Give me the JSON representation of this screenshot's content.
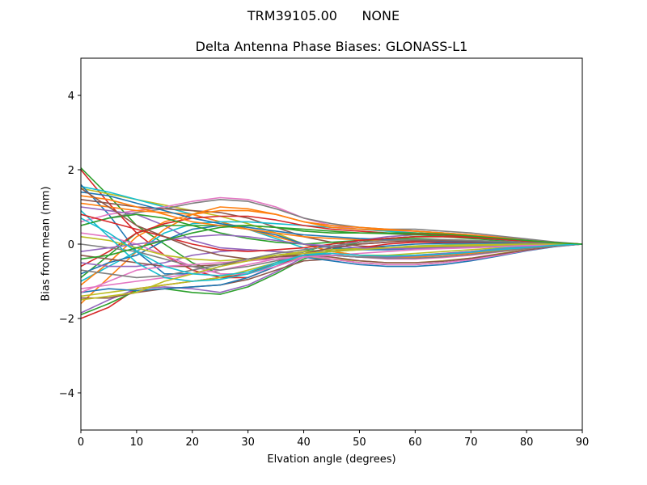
{
  "figure": {
    "suptitle": "TRM39105.00      NONE",
    "title": "Delta Antenna Phase Biases: GLONASS-L1",
    "xlabel": "Elvation angle (degrees)",
    "ylabel": "Bias from mean (mm)"
  },
  "chart_data": {
    "type": "line",
    "title": "Delta Antenna Phase Biases: GLONASS-L1",
    "suptitle": "TRM39105.00      NONE",
    "xlabel": "Elvation angle (degrees)",
    "ylabel": "Bias from mean (mm)",
    "xlim": [
      0,
      90
    ],
    "ylim": [
      -5,
      5
    ],
    "xticks": [
      0,
      10,
      20,
      30,
      40,
      50,
      60,
      70,
      80,
      90
    ],
    "yticks": [
      -4,
      -2,
      0,
      2,
      4
    ],
    "grid": false,
    "legend": null,
    "x": [
      0,
      5,
      10,
      15,
      20,
      25,
      30,
      35,
      40,
      45,
      50,
      55,
      60,
      65,
      70,
      75,
      80,
      85,
      90
    ],
    "series": [
      {
        "name": "s1",
        "color": "#d62728",
        "values": [
          2.0,
          1.1,
          0.3,
          -0.3,
          -0.7,
          -0.9,
          -0.9,
          -0.6,
          -0.3,
          -0.1,
          0.0,
          0.05,
          0.08,
          0.08,
          0.06,
          0.04,
          0.02,
          0.01,
          0.0
        ]
      },
      {
        "name": "s2",
        "color": "#2ca02c",
        "values": [
          2.05,
          1.3,
          0.5,
          0.0,
          -0.5,
          -0.8,
          -0.8,
          -0.5,
          -0.2,
          0.0,
          0.1,
          0.15,
          0.15,
          0.12,
          0.1,
          0.07,
          0.04,
          0.02,
          0.0
        ]
      },
      {
        "name": "s3",
        "color": "#bcbd22",
        "values": [
          1.5,
          1.35,
          1.2,
          1.05,
          0.9,
          0.75,
          0.55,
          0.3,
          0.0,
          -0.2,
          -0.3,
          -0.3,
          -0.25,
          -0.2,
          -0.15,
          -0.1,
          -0.05,
          -0.02,
          0.0
        ]
      },
      {
        "name": "s4",
        "color": "#17becf",
        "values": [
          1.55,
          1.4,
          1.2,
          1.0,
          0.8,
          0.6,
          0.4,
          0.15,
          -0.1,
          -0.3,
          -0.35,
          -0.35,
          -0.3,
          -0.25,
          -0.2,
          -0.12,
          -0.06,
          -0.02,
          0.0
        ]
      },
      {
        "name": "s5",
        "color": "#1f77b4",
        "values": [
          1.6,
          0.8,
          -0.2,
          -0.8,
          -0.8,
          -0.6,
          -0.4,
          -0.3,
          -0.2,
          -0.15,
          -0.1,
          -0.05,
          0.0,
          0.02,
          0.02,
          0.02,
          0.01,
          0.0,
          0.0
        ]
      },
      {
        "name": "s6",
        "color": "#e377c2",
        "values": [
          0.6,
          0.8,
          0.9,
          1.0,
          1.15,
          1.25,
          1.2,
          1.0,
          0.7,
          0.5,
          0.4,
          0.35,
          0.35,
          0.3,
          0.25,
          0.2,
          0.12,
          0.05,
          0.0
        ]
      },
      {
        "name": "s7",
        "color": "#7f7f7f",
        "values": [
          0.5,
          0.7,
          0.85,
          0.95,
          1.1,
          1.2,
          1.15,
          0.95,
          0.7,
          0.55,
          0.45,
          0.4,
          0.4,
          0.35,
          0.3,
          0.22,
          0.14,
          0.06,
          0.0
        ]
      },
      {
        "name": "s8",
        "color": "#8c564b",
        "values": [
          1.2,
          1.1,
          1.0,
          0.95,
          0.9,
          0.85,
          0.7,
          0.45,
          0.2,
          0.05,
          -0.05,
          -0.1,
          -0.1,
          -0.08,
          -0.06,
          -0.04,
          -0.02,
          -0.01,
          0.0
        ]
      },
      {
        "name": "s9",
        "color": "#9467bd",
        "values": [
          1.0,
          0.9,
          0.8,
          0.5,
          0.1,
          -0.1,
          -0.15,
          -0.2,
          -0.25,
          -0.3,
          -0.35,
          -0.35,
          -0.3,
          -0.25,
          -0.2,
          -0.14,
          -0.08,
          -0.03,
          0.0
        ]
      },
      {
        "name": "s10",
        "color": "#ff7f0e",
        "values": [
          1.1,
          1.0,
          0.9,
          0.85,
          0.8,
          0.6,
          0.4,
          0.2,
          0.0,
          -0.2,
          -0.3,
          -0.35,
          -0.35,
          -0.3,
          -0.25,
          -0.17,
          -0.1,
          -0.04,
          0.0
        ]
      },
      {
        "name": "s11",
        "color": "#d62728",
        "values": [
          -2.0,
          -1.7,
          -1.2,
          -1.1,
          -1.0,
          -0.9,
          -0.8,
          -0.5,
          -0.3,
          -0.2,
          -0.1,
          0.0,
          0.05,
          0.05,
          0.04,
          0.03,
          0.02,
          0.01,
          0.0
        ]
      },
      {
        "name": "s12",
        "color": "#2ca02c",
        "values": [
          -1.9,
          -1.6,
          -1.25,
          -1.2,
          -1.3,
          -1.35,
          -1.15,
          -0.8,
          -0.4,
          -0.15,
          0.05,
          0.15,
          0.2,
          0.2,
          0.15,
          0.1,
          0.06,
          0.02,
          0.0
        ]
      },
      {
        "name": "s13",
        "color": "#9467bd",
        "values": [
          -1.85,
          -1.5,
          -1.2,
          -1.15,
          -1.2,
          -1.3,
          -1.1,
          -0.75,
          -0.35,
          -0.1,
          0.1,
          0.2,
          0.25,
          0.22,
          0.18,
          0.12,
          0.07,
          0.03,
          0.0
        ]
      },
      {
        "name": "s14",
        "color": "#ff7f0e",
        "values": [
          -1.6,
          -0.9,
          -0.2,
          0.4,
          0.8,
          1.0,
          0.95,
          0.8,
          0.6,
          0.5,
          0.45,
          0.4,
          0.35,
          0.3,
          0.25,
          0.18,
          0.1,
          0.04,
          0.0
        ]
      },
      {
        "name": "s15",
        "color": "#8c564b",
        "values": [
          -1.45,
          -1.45,
          -1.3,
          -1.2,
          -1.15,
          -1.1,
          -0.95,
          -0.7,
          -0.45,
          -0.4,
          -0.5,
          -0.55,
          -0.55,
          -0.5,
          -0.4,
          -0.28,
          -0.16,
          -0.06,
          0.0
        ]
      },
      {
        "name": "s16",
        "color": "#bcbd22",
        "values": [
          -1.4,
          -1.3,
          -1.2,
          -1.1,
          -1.0,
          -0.9,
          -0.7,
          -0.5,
          -0.35,
          -0.4,
          -0.45,
          -0.5,
          -0.5,
          -0.45,
          -0.38,
          -0.26,
          -0.15,
          -0.06,
          0.0
        ]
      },
      {
        "name": "s17",
        "color": "#1f77b4",
        "values": [
          -1.3,
          -1.2,
          -1.25,
          -1.2,
          -1.15,
          -1.1,
          -0.9,
          -0.6,
          -0.35,
          -0.45,
          -0.55,
          -0.6,
          -0.6,
          -0.55,
          -0.45,
          -0.32,
          -0.18,
          -0.07,
          0.0
        ]
      },
      {
        "name": "s18",
        "color": "#e377c2",
        "values": [
          -1.2,
          -1.1,
          -1.0,
          -0.9,
          -0.8,
          -0.7,
          -0.55,
          -0.4,
          -0.3,
          -0.4,
          -0.5,
          -0.55,
          -0.55,
          -0.5,
          -0.42,
          -0.3,
          -0.17,
          -0.06,
          0.0
        ]
      },
      {
        "name": "s19",
        "color": "#17becf",
        "values": [
          -1.0,
          -0.6,
          -0.2,
          0.3,
          0.55,
          0.6,
          0.6,
          0.55,
          0.5,
          0.45,
          0.4,
          0.35,
          0.3,
          0.26,
          0.22,
          0.16,
          0.1,
          0.04,
          0.0
        ]
      },
      {
        "name": "s20",
        "color": "#ff7f0e",
        "values": [
          -1.1,
          -0.5,
          0.2,
          0.6,
          0.8,
          0.9,
          0.9,
          0.8,
          0.6,
          0.45,
          0.4,
          0.38,
          0.35,
          0.3,
          0.25,
          0.18,
          0.1,
          0.04,
          0.0
        ]
      },
      {
        "name": "s21",
        "color": "#2ca02c",
        "values": [
          -0.9,
          -0.3,
          0.3,
          0.5,
          0.5,
          0.5,
          0.5,
          0.45,
          0.4,
          0.35,
          0.3,
          0.28,
          0.25,
          0.22,
          0.18,
          0.13,
          0.08,
          0.03,
          0.0
        ]
      },
      {
        "name": "s22",
        "color": "#d62728",
        "values": [
          -0.6,
          -0.2,
          0.3,
          0.55,
          0.7,
          0.75,
          0.75,
          0.65,
          0.5,
          0.4,
          0.35,
          0.3,
          0.28,
          0.25,
          0.2,
          0.15,
          0.09,
          0.04,
          0.0
        ]
      },
      {
        "name": "s23",
        "color": "#1f77b4",
        "values": [
          -0.8,
          -0.5,
          -0.3,
          0.1,
          0.4,
          0.5,
          0.4,
          0.25,
          0.0,
          -0.1,
          -0.15,
          -0.15,
          -0.12,
          -0.1,
          -0.08,
          -0.05,
          -0.03,
          -0.01,
          0.0
        ]
      },
      {
        "name": "s24",
        "color": "#9467bd",
        "values": [
          -0.5,
          -0.6,
          -0.6,
          -0.5,
          -0.3,
          -0.2,
          -0.15,
          -0.2,
          -0.25,
          -0.3,
          -0.35,
          -0.35,
          -0.32,
          -0.28,
          -0.22,
          -0.15,
          -0.09,
          -0.03,
          0.0
        ]
      },
      {
        "name": "s25",
        "color": "#8c564b",
        "values": [
          -0.3,
          -0.4,
          -0.5,
          -0.6,
          -0.6,
          -0.55,
          -0.45,
          -0.35,
          -0.3,
          -0.35,
          -0.45,
          -0.5,
          -0.5,
          -0.46,
          -0.38,
          -0.27,
          -0.16,
          -0.06,
          0.0
        ]
      },
      {
        "name": "s26",
        "color": "#e377c2",
        "values": [
          0.3,
          0.2,
          0.0,
          -0.3,
          -0.6,
          -0.8,
          -0.8,
          -0.6,
          -0.35,
          -0.3,
          -0.35,
          -0.4,
          -0.4,
          -0.36,
          -0.3,
          -0.21,
          -0.12,
          -0.05,
          0.0
        ]
      },
      {
        "name": "s27",
        "color": "#7f7f7f",
        "values": [
          0.0,
          -0.1,
          -0.2,
          -0.4,
          -0.6,
          -0.7,
          -0.6,
          -0.45,
          -0.3,
          -0.3,
          -0.35,
          -0.38,
          -0.38,
          -0.34,
          -0.28,
          -0.2,
          -0.12,
          -0.05,
          0.0
        ]
      },
      {
        "name": "s28",
        "color": "#bcbd22",
        "values": [
          0.2,
          0.1,
          -0.1,
          -0.3,
          -0.4,
          -0.45,
          -0.4,
          -0.3,
          -0.2,
          -0.15,
          -0.12,
          -0.1,
          -0.08,
          -0.06,
          -0.05,
          -0.03,
          -0.02,
          -0.01,
          0.0
        ]
      },
      {
        "name": "s29",
        "color": "#17becf",
        "values": [
          0.9,
          0.2,
          -0.5,
          -0.9,
          -1.0,
          -0.95,
          -0.8,
          -0.55,
          -0.3,
          -0.2,
          -0.15,
          -0.1,
          -0.05,
          -0.02,
          0.0,
          0.0,
          0.0,
          0.0,
          0.0
        ]
      },
      {
        "name": "s30",
        "color": "#2ca02c",
        "values": [
          0.5,
          0.7,
          0.8,
          0.7,
          0.5,
          0.3,
          0.15,
          0.05,
          0.0,
          0.05,
          0.1,
          0.15,
          0.2,
          0.2,
          0.18,
          0.13,
          0.08,
          0.03,
          0.0
        ]
      },
      {
        "name": "s31",
        "color": "#ff7f0e",
        "values": [
          1.3,
          1.2,
          1.0,
          0.8,
          0.6,
          0.5,
          0.4,
          0.3,
          0.2,
          0.15,
          0.12,
          0.1,
          0.1,
          0.08,
          0.06,
          0.04,
          0.03,
          0.01,
          0.0
        ]
      },
      {
        "name": "s32",
        "color": "#1f77b4",
        "values": [
          1.4,
          1.3,
          1.1,
          0.9,
          0.7,
          0.55,
          0.45,
          0.35,
          0.25,
          0.2,
          0.15,
          0.12,
          0.1,
          0.08,
          0.06,
          0.04,
          0.03,
          0.01,
          0.0
        ]
      },
      {
        "name": "s33",
        "color": "#d62728",
        "values": [
          0.8,
          0.6,
          0.4,
          0.2,
          0.0,
          -0.15,
          -0.2,
          -0.15,
          -0.1,
          0.0,
          0.1,
          0.15,
          0.2,
          0.2,
          0.18,
          0.13,
          0.08,
          0.03,
          0.0
        ]
      },
      {
        "name": "s34",
        "color": "#9467bd",
        "values": [
          -0.2,
          -0.1,
          0.0,
          0.1,
          0.2,
          0.25,
          0.2,
          0.1,
          0.0,
          -0.05,
          -0.1,
          -0.12,
          -0.12,
          -0.1,
          -0.08,
          -0.06,
          -0.04,
          -0.02,
          0.0
        ]
      },
      {
        "name": "s35",
        "color": "#e377c2",
        "values": [
          -1.3,
          -1.0,
          -0.7,
          -0.6,
          -0.55,
          -0.5,
          -0.45,
          -0.4,
          -0.35,
          -0.3,
          -0.25,
          -0.2,
          -0.15,
          -0.12,
          -0.1,
          -0.07,
          -0.04,
          -0.02,
          0.0
        ]
      },
      {
        "name": "s36",
        "color": "#8c564b",
        "values": [
          1.5,
          1.0,
          0.5,
          0.2,
          -0.1,
          -0.3,
          -0.4,
          -0.35,
          -0.25,
          -0.1,
          0.0,
          0.05,
          0.1,
          0.1,
          0.08,
          0.06,
          0.04,
          0.02,
          0.0
        ]
      },
      {
        "name": "s37",
        "color": "#7f7f7f",
        "values": [
          -0.7,
          -0.8,
          -0.9,
          -0.85,
          -0.7,
          -0.55,
          -0.4,
          -0.25,
          -0.15,
          -0.05,
          0.05,
          0.1,
          0.12,
          0.12,
          0.1,
          0.07,
          0.04,
          0.02,
          0.0
        ]
      },
      {
        "name": "s38",
        "color": "#bcbd22",
        "values": [
          -1.5,
          -1.4,
          -1.3,
          -1.0,
          -0.8,
          -0.6,
          -0.45,
          -0.3,
          -0.25,
          -0.2,
          -0.15,
          -0.1,
          -0.05,
          -0.03,
          -0.02,
          -0.01,
          0.0,
          0.0,
          0.0
        ]
      },
      {
        "name": "s39",
        "color": "#17becf",
        "values": [
          0.7,
          0.3,
          -0.2,
          -0.6,
          -0.8,
          -0.85,
          -0.75,
          -0.5,
          -0.3,
          -0.25,
          -0.3,
          -0.32,
          -0.3,
          -0.27,
          -0.22,
          -0.15,
          -0.09,
          -0.03,
          0.0
        ]
      },
      {
        "name": "s40",
        "color": "#2ca02c",
        "values": [
          -0.4,
          -0.3,
          -0.1,
          0.1,
          0.3,
          0.45,
          0.5,
          0.45,
          0.35,
          0.3,
          0.3,
          0.3,
          0.3,
          0.27,
          0.22,
          0.16,
          0.1,
          0.04,
          0.0
        ]
      }
    ]
  }
}
